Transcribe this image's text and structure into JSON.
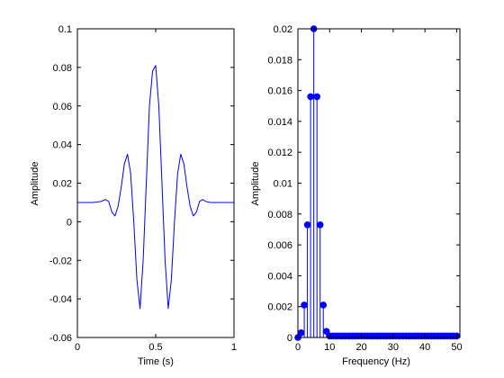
{
  "chart_data": [
    {
      "type": "line",
      "title": "",
      "xlabel": "Time (s)",
      "ylabel": "Amplitude",
      "xlim": [
        0,
        1
      ],
      "ylim": [
        -0.06,
        0.1
      ],
      "xticks": [
        0,
        0.5,
        1
      ],
      "yticks": [
        -0.06,
        -0.04,
        -0.02,
        0,
        0.02,
        0.04,
        0.06,
        0.08,
        0.1
      ],
      "xtick_labels": [
        "0",
        "0.5",
        "1"
      ],
      "ytick_labels": [
        "-0.06",
        "-0.04",
        "-0.02",
        "0",
        "0.02",
        "0.04",
        "0.06",
        "0.08",
        "0.1"
      ],
      "grid": false,
      "color": "#0000ff",
      "series": [
        {
          "x": [
            0,
            0.05,
            0.1,
            0.15,
            0.18,
            0.2,
            0.22,
            0.24,
            0.26,
            0.28,
            0.3,
            0.32,
            0.34,
            0.36,
            0.38,
            0.4,
            0.42,
            0.44,
            0.46,
            0.48,
            0.5,
            0.52,
            0.54,
            0.56,
            0.58,
            0.6,
            0.62,
            0.64,
            0.66,
            0.68,
            0.7,
            0.72,
            0.74,
            0.76,
            0.78,
            0.8,
            0.82,
            0.85,
            0.9,
            0.95,
            1
          ],
          "y": [
            0.01,
            0.01,
            0.01,
            0.0105,
            0.0115,
            0.0105,
            0.005,
            0.003,
            0.008,
            0.018,
            0.03,
            0.035,
            0.025,
            0.0,
            -0.03,
            -0.045,
            -0.02,
            0.02,
            0.06,
            0.078,
            0.081,
            0.06,
            0.02,
            -0.02,
            -0.045,
            -0.03,
            0.0,
            0.025,
            0.035,
            0.03,
            0.018,
            0.008,
            0.003,
            0.005,
            0.0105,
            0.0115,
            0.0105,
            0.01,
            0.01,
            0.01,
            0.01
          ]
        }
      ]
    },
    {
      "type": "stem",
      "title": "",
      "xlabel": "Frequency (Hz)",
      "ylabel": "Amplitude",
      "xlim": [
        0,
        51
      ],
      "ylim": [
        0,
        0.02
      ],
      "xticks": [
        0,
        10,
        20,
        30,
        40,
        50
      ],
      "yticks": [
        0,
        0.002,
        0.004,
        0.006,
        0.008,
        0.01,
        0.012,
        0.014,
        0.016,
        0.018,
        0.02
      ],
      "xtick_labels": [
        "0",
        "10",
        "20",
        "30",
        "40",
        "50"
      ],
      "ytick_labels": [
        "0",
        "0.002",
        "0.004",
        "0.006",
        "0.008",
        "0.01",
        "0.012",
        "0.014",
        "0.016",
        "0.018",
        "0.02"
      ],
      "grid": false,
      "color": "#0000ff",
      "series": [
        {
          "x": [
            0,
            1,
            2,
            3,
            4,
            5,
            6,
            7,
            8,
            9,
            10,
            11,
            12,
            13,
            14,
            15,
            16,
            17,
            18,
            19,
            20,
            21,
            22,
            23,
            24,
            25,
            26,
            27,
            28,
            29,
            30,
            31,
            32,
            33,
            34,
            35,
            36,
            37,
            38,
            39,
            40,
            41,
            42,
            43,
            44,
            45,
            46,
            47,
            48,
            49,
            50
          ],
          "y": [
            0.0,
            0.0003,
            0.0021,
            0.0073,
            0.0156,
            0.02,
            0.0156,
            0.0073,
            0.0021,
            0.0004,
            0.0001,
            0.0001,
            0.0001,
            0.0001,
            0.0001,
            0.0001,
            0.0001,
            0.0001,
            0.0001,
            0.0001,
            0.0001,
            0.0001,
            0.0001,
            0.0001,
            0.0001,
            0.0001,
            0.0001,
            0.0001,
            0.0001,
            0.0001,
            0.0001,
            0.0001,
            0.0001,
            0.0001,
            0.0001,
            0.0001,
            0.0001,
            0.0001,
            0.0001,
            0.0001,
            0.0001,
            0.0001,
            0.0001,
            0.0001,
            0.0001,
            0.0001,
            0.0001,
            0.0001,
            0.0001,
            0.0001,
            0.0001
          ]
        }
      ]
    }
  ]
}
